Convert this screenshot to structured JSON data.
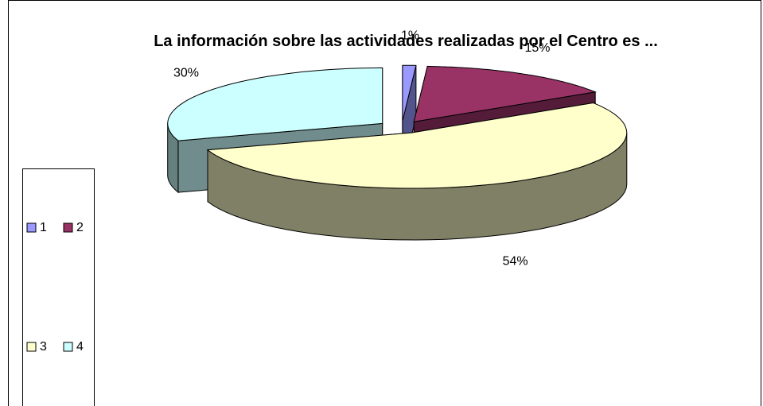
{
  "chart_data": {
    "type": "pie3d",
    "title": "La información sobre las actividades realizadas por el Centro es ...",
    "categories": [
      "1",
      "2",
      "3",
      "4"
    ],
    "values": [
      1,
      15,
      54,
      30
    ],
    "value_labels": [
      "1%",
      "15%",
      "54%",
      "30%"
    ],
    "colors": [
      "#9999ff",
      "#993366",
      "#ffffcc",
      "#ccffff"
    ],
    "legend": "left"
  }
}
